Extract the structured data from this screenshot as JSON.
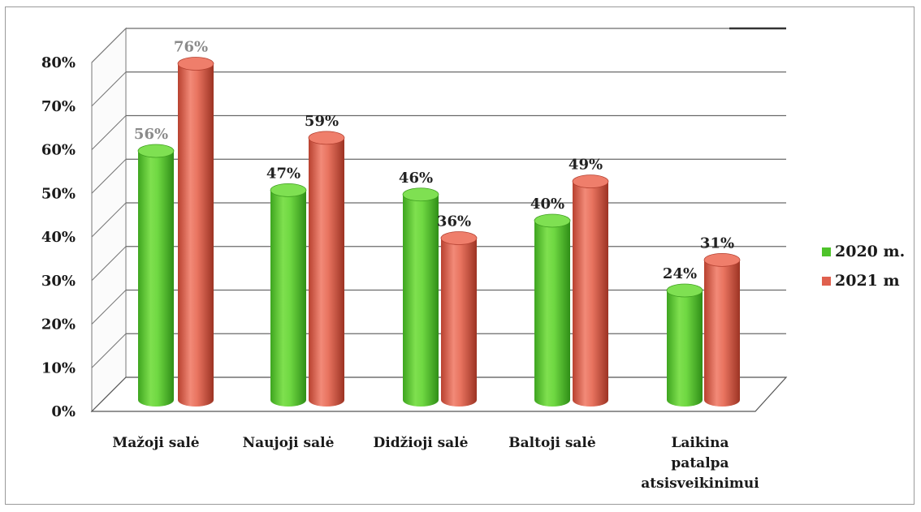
{
  "chart_data": {
    "type": "bar",
    "categories": [
      "Mažoji salė",
      "Naujoji salė",
      "Didžioji salė",
      "Baltoji salė",
      "Laikina patalpa atsisveikinimui"
    ],
    "category_lines": [
      [
        "Mažoji salė"
      ],
      [
        "Naujoji salė"
      ],
      [
        "Didžioji salė"
      ],
      [
        "Baltoji salė"
      ],
      [
        "Laikina",
        "patalpa",
        "atsisveikinimui"
      ]
    ],
    "series": [
      {
        "name": "2020 m.",
        "color": "#5fcf3a",
        "values": [
          56,
          47,
          46,
          40,
          24
        ],
        "labels": [
          "56%",
          "47%",
          "46%",
          "40%",
          "24%"
        ]
      },
      {
        "name": "2021 m",
        "color": "#e46a58",
        "values": [
          76,
          59,
          36,
          49,
          31
        ],
        "labels": [
          "76%",
          "59%",
          "36%",
          "49%",
          "31%"
        ]
      }
    ],
    "yticks": [
      "0%",
      "10%",
      "20%",
      "30%",
      "40%",
      "50%",
      "60%",
      "70%",
      "80%"
    ],
    "ylim": [
      0,
      80
    ],
    "grid": true,
    "legend_position": "right",
    "style": "3d-cylinder"
  }
}
